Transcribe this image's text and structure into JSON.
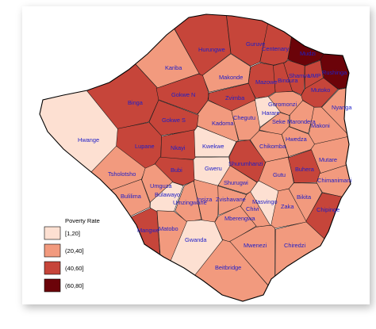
{
  "legend": {
    "title": "Poverty Rate",
    "classes": [
      {
        "label": "[1,20]",
        "color": "#fde0d2"
      },
      {
        "label": "(20,40]",
        "color": "#f29a7e"
      },
      {
        "label": "(40,60]",
        "color": "#c6453a"
      },
      {
        "label": "(60,80]",
        "color": "#6b0309"
      }
    ]
  },
  "districts": [
    {
      "name": "Hurungwe",
      "class": 2
    },
    {
      "name": "Guruve",
      "class": 2
    },
    {
      "name": "Centenary",
      "class": 2
    },
    {
      "name": "Mudzi",
      "class": 3
    },
    {
      "name": "Rushinga",
      "class": 3
    },
    {
      "name": "Kariba",
      "class": 1
    },
    {
      "name": "Makonde",
      "class": 1
    },
    {
      "name": "Mazowe",
      "class": 2
    },
    {
      "name": "Bindura",
      "class": 2
    },
    {
      "name": "Shamva",
      "class": 2
    },
    {
      "name": "UMP",
      "class": 2
    },
    {
      "name": "Mutoko",
      "class": 2
    },
    {
      "name": "Binga",
      "class": 2
    },
    {
      "name": "Gokwe N",
      "class": 2
    },
    {
      "name": "Zvimba",
      "class": 2
    },
    {
      "name": "Goromonzi",
      "class": 1
    },
    {
      "name": "Nyanga",
      "class": 1
    },
    {
      "name": "Harare",
      "class": 0
    },
    {
      "name": "Seke",
      "class": 1
    },
    {
      "name": "Marondera",
      "class": 1
    },
    {
      "name": "Chegutu",
      "class": 1
    },
    {
      "name": "Kadoma",
      "class": 1
    },
    {
      "name": "Gokwe S",
      "class": 2
    },
    {
      "name": "Makoni",
      "class": 1
    },
    {
      "name": "Hwange",
      "class": 0
    },
    {
      "name": "Lupane",
      "class": 2
    },
    {
      "name": "Nkayi",
      "class": 2
    },
    {
      "name": "Kwekwe",
      "class": 0
    },
    {
      "name": "Chikomba",
      "class": 1
    },
    {
      "name": "Hwedza",
      "class": 1
    },
    {
      "name": "Mutare",
      "class": 1
    },
    {
      "name": "Tsholotsho",
      "class": 1
    },
    {
      "name": "Bubi",
      "class": 2
    },
    {
      "name": "Gweru",
      "class": 0
    },
    {
      "name": "Shurumhanzi",
      "class": 2
    },
    {
      "name": "Gutu",
      "class": 1
    },
    {
      "name": "Buhera",
      "class": 2
    },
    {
      "name": "Chimanimani",
      "class": 1
    },
    {
      "name": "Umguza",
      "class": 1
    },
    {
      "name": "Shurugwi",
      "class": 1
    },
    {
      "name": "Bulilima",
      "class": 1
    },
    {
      "name": "Bulawayo",
      "class": 0
    },
    {
      "name": "Umzingwane",
      "class": 1
    },
    {
      "name": "Insiza",
      "class": 1
    },
    {
      "name": "Zvishavane",
      "class": 1
    },
    {
      "name": "Chivi",
      "class": 1
    },
    {
      "name": "Masvingo",
      "class": 0
    },
    {
      "name": "Zaka",
      "class": 1
    },
    {
      "name": "Bikita",
      "class": 1
    },
    {
      "name": "Chipinge",
      "class": 2
    },
    {
      "name": "Mangwe",
      "class": 2
    },
    {
      "name": "Matobo",
      "class": 1
    },
    {
      "name": "Mberengwa",
      "class": 1
    },
    {
      "name": "Gwanda",
      "class": 0
    },
    {
      "name": "Mwenezi",
      "class": 1
    },
    {
      "name": "Chiredzi",
      "class": 1
    },
    {
      "name": "Beitbridge",
      "class": 1
    }
  ]
}
